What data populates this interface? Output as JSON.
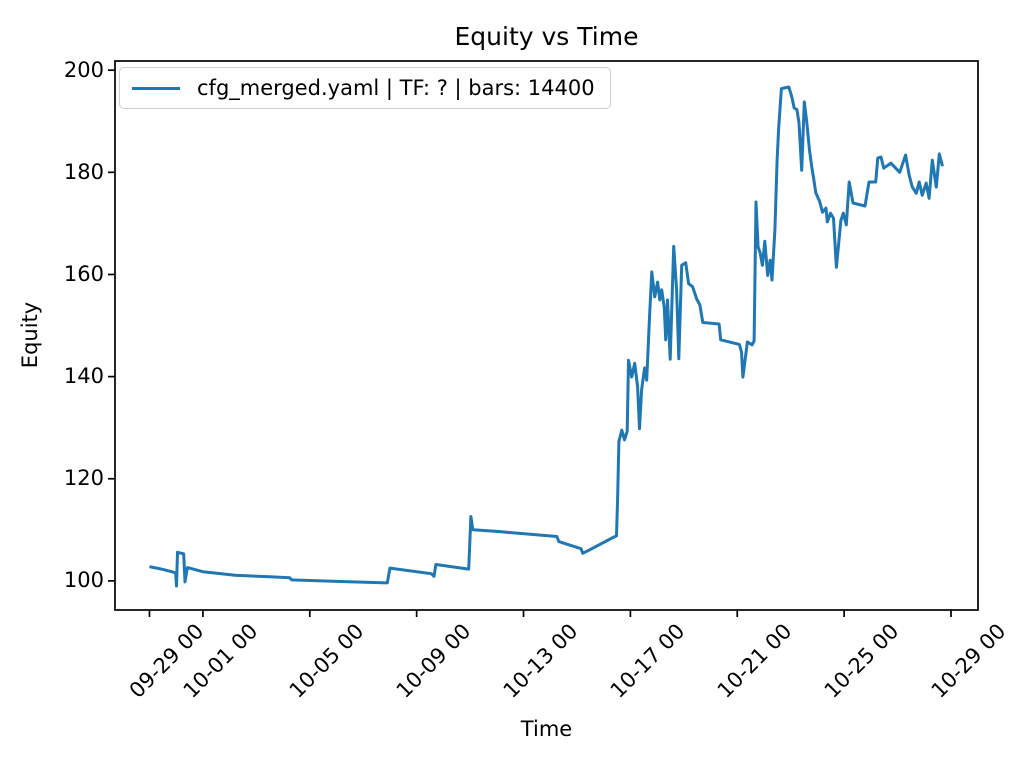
{
  "figure": {
    "background": "#ffffff"
  },
  "chart_data": {
    "type": "line",
    "title": "Equity vs Time",
    "xlabel": "Time",
    "ylabel": "Equity",
    "grid": false,
    "legend": {
      "location": "upper left",
      "entries": [
        {
          "label": "cfg_merged.yaml | TF: ? | bars: 14400",
          "color": "#1f77b4"
        }
      ]
    },
    "x_axis": {
      "kind": "datetime",
      "tick_labels": [
        "09-29 00",
        "10-01 00",
        "10-05 00",
        "10-09 00",
        "10-13 00",
        "10-17 00",
        "10-21 00",
        "10-25 00",
        "10-29 00"
      ],
      "tick_days": [
        0,
        2,
        6,
        10,
        14,
        18,
        22,
        26,
        30
      ],
      "range_days": [
        -1.29,
        31.01
      ],
      "label_rotation_deg": 45,
      "day_zero": "09-29 00:00"
    },
    "y_axis": {
      "tick_labels": [
        "100",
        "120",
        "140",
        "160",
        "180",
        "200"
      ],
      "tick_values": [
        100,
        120,
        140,
        160,
        180,
        200
      ],
      "range": [
        94.3,
        201.8
      ]
    },
    "series": [
      {
        "name": "cfg_merged.yaml | TF: ? | bars: 14400",
        "color": "#1f77b4",
        "line_width": 3,
        "points": [
          [
            0.0,
            102.8
          ],
          [
            0.45,
            102.3
          ],
          [
            0.9,
            101.7
          ],
          [
            0.98,
            101.5
          ],
          [
            1.01,
            99.0
          ],
          [
            1.05,
            105.6
          ],
          [
            1.28,
            105.3
          ],
          [
            1.33,
            99.8
          ],
          [
            1.42,
            102.6
          ],
          [
            2.0,
            101.8
          ],
          [
            3.2,
            101.1
          ],
          [
            4.5,
            100.8
          ],
          [
            5.25,
            100.6
          ],
          [
            5.32,
            100.2
          ],
          [
            7.0,
            99.9
          ],
          [
            8.9,
            99.6
          ],
          [
            9.0,
            102.5
          ],
          [
            10.55,
            101.4
          ],
          [
            10.65,
            100.9
          ],
          [
            10.72,
            103.2
          ],
          [
            11.95,
            102.3
          ],
          [
            12.03,
            112.6
          ],
          [
            12.1,
            110.0
          ],
          [
            13.0,
            109.7
          ],
          [
            15.25,
            108.7
          ],
          [
            15.32,
            107.7
          ],
          [
            16.15,
            106.3
          ],
          [
            16.22,
            105.4
          ],
          [
            16.45,
            106.0
          ],
          [
            17.35,
            108.5
          ],
          [
            17.48,
            108.8
          ],
          [
            17.52,
            116.0
          ],
          [
            17.57,
            127.3
          ],
          [
            17.68,
            129.5
          ],
          [
            17.78,
            127.6
          ],
          [
            17.88,
            129.3
          ],
          [
            17.93,
            143.2
          ],
          [
            18.05,
            139.9
          ],
          [
            18.16,
            142.6
          ],
          [
            18.27,
            138.0
          ],
          [
            18.34,
            129.8
          ],
          [
            18.42,
            137.4
          ],
          [
            18.53,
            141.7
          ],
          [
            18.61,
            139.3
          ],
          [
            18.72,
            152.0
          ],
          [
            18.8,
            160.5
          ],
          [
            18.91,
            155.6
          ],
          [
            19.02,
            158.5
          ],
          [
            19.1,
            155.0
          ],
          [
            19.17,
            157.0
          ],
          [
            19.27,
            153.5
          ],
          [
            19.32,
            147.2
          ],
          [
            19.39,
            155.0
          ],
          [
            19.49,
            143.4
          ],
          [
            19.62,
            165.5
          ],
          [
            19.73,
            157.0
          ],
          [
            19.81,
            143.5
          ],
          [
            19.92,
            161.8
          ],
          [
            20.07,
            162.3
          ],
          [
            20.18,
            158.2
          ],
          [
            20.33,
            157.6
          ],
          [
            20.48,
            155.2
          ],
          [
            20.6,
            154.0
          ],
          [
            20.71,
            150.6
          ],
          [
            21.32,
            150.3
          ],
          [
            21.38,
            147.2
          ],
          [
            22.08,
            146.3
          ],
          [
            22.16,
            144.8
          ],
          [
            22.21,
            139.9
          ],
          [
            22.38,
            146.8
          ],
          [
            22.55,
            146.2
          ],
          [
            22.63,
            147.0
          ],
          [
            22.7,
            174.2
          ],
          [
            22.78,
            165.4
          ],
          [
            22.86,
            164.2
          ],
          [
            22.94,
            161.8
          ],
          [
            23.03,
            166.5
          ],
          [
            23.14,
            159.8
          ],
          [
            23.23,
            162.8
          ],
          [
            23.3,
            158.9
          ],
          [
            23.41,
            168.7
          ],
          [
            23.49,
            182.4
          ],
          [
            23.55,
            188.8
          ],
          [
            23.65,
            196.4
          ],
          [
            23.93,
            196.7
          ],
          [
            24.03,
            195.0
          ],
          [
            24.13,
            192.6
          ],
          [
            24.23,
            192.3
          ],
          [
            24.31,
            189.7
          ],
          [
            24.41,
            180.4
          ],
          [
            24.51,
            193.8
          ],
          [
            24.6,
            190.0
          ],
          [
            24.7,
            184.5
          ],
          [
            24.79,
            181.0
          ],
          [
            24.87,
            178.5
          ],
          [
            24.94,
            176.0
          ],
          [
            25.08,
            174.3
          ],
          [
            25.19,
            172.2
          ],
          [
            25.32,
            173.0
          ],
          [
            25.37,
            170.3
          ],
          [
            25.49,
            172.0
          ],
          [
            25.6,
            171.0
          ],
          [
            25.71,
            161.4
          ],
          [
            25.88,
            170.6
          ],
          [
            25.97,
            172.0
          ],
          [
            26.08,
            169.7
          ],
          [
            26.19,
            178.1
          ],
          [
            26.33,
            174.0
          ],
          [
            26.78,
            173.4
          ],
          [
            26.93,
            178.1
          ],
          [
            27.18,
            178.1
          ],
          [
            27.26,
            182.8
          ],
          [
            27.38,
            183.0
          ],
          [
            27.48,
            180.8
          ],
          [
            27.75,
            181.8
          ],
          [
            27.93,
            180.8
          ],
          [
            28.08,
            180.0
          ],
          [
            28.3,
            183.4
          ],
          [
            28.43,
            179.5
          ],
          [
            28.55,
            177.1
          ],
          [
            28.7,
            175.9
          ],
          [
            28.81,
            178.1
          ],
          [
            28.92,
            175.5
          ],
          [
            29.07,
            177.9
          ],
          [
            29.18,
            174.9
          ],
          [
            29.3,
            182.4
          ],
          [
            29.45,
            177.1
          ],
          [
            29.56,
            183.6
          ],
          [
            29.68,
            181.2
          ]
        ]
      }
    ]
  }
}
